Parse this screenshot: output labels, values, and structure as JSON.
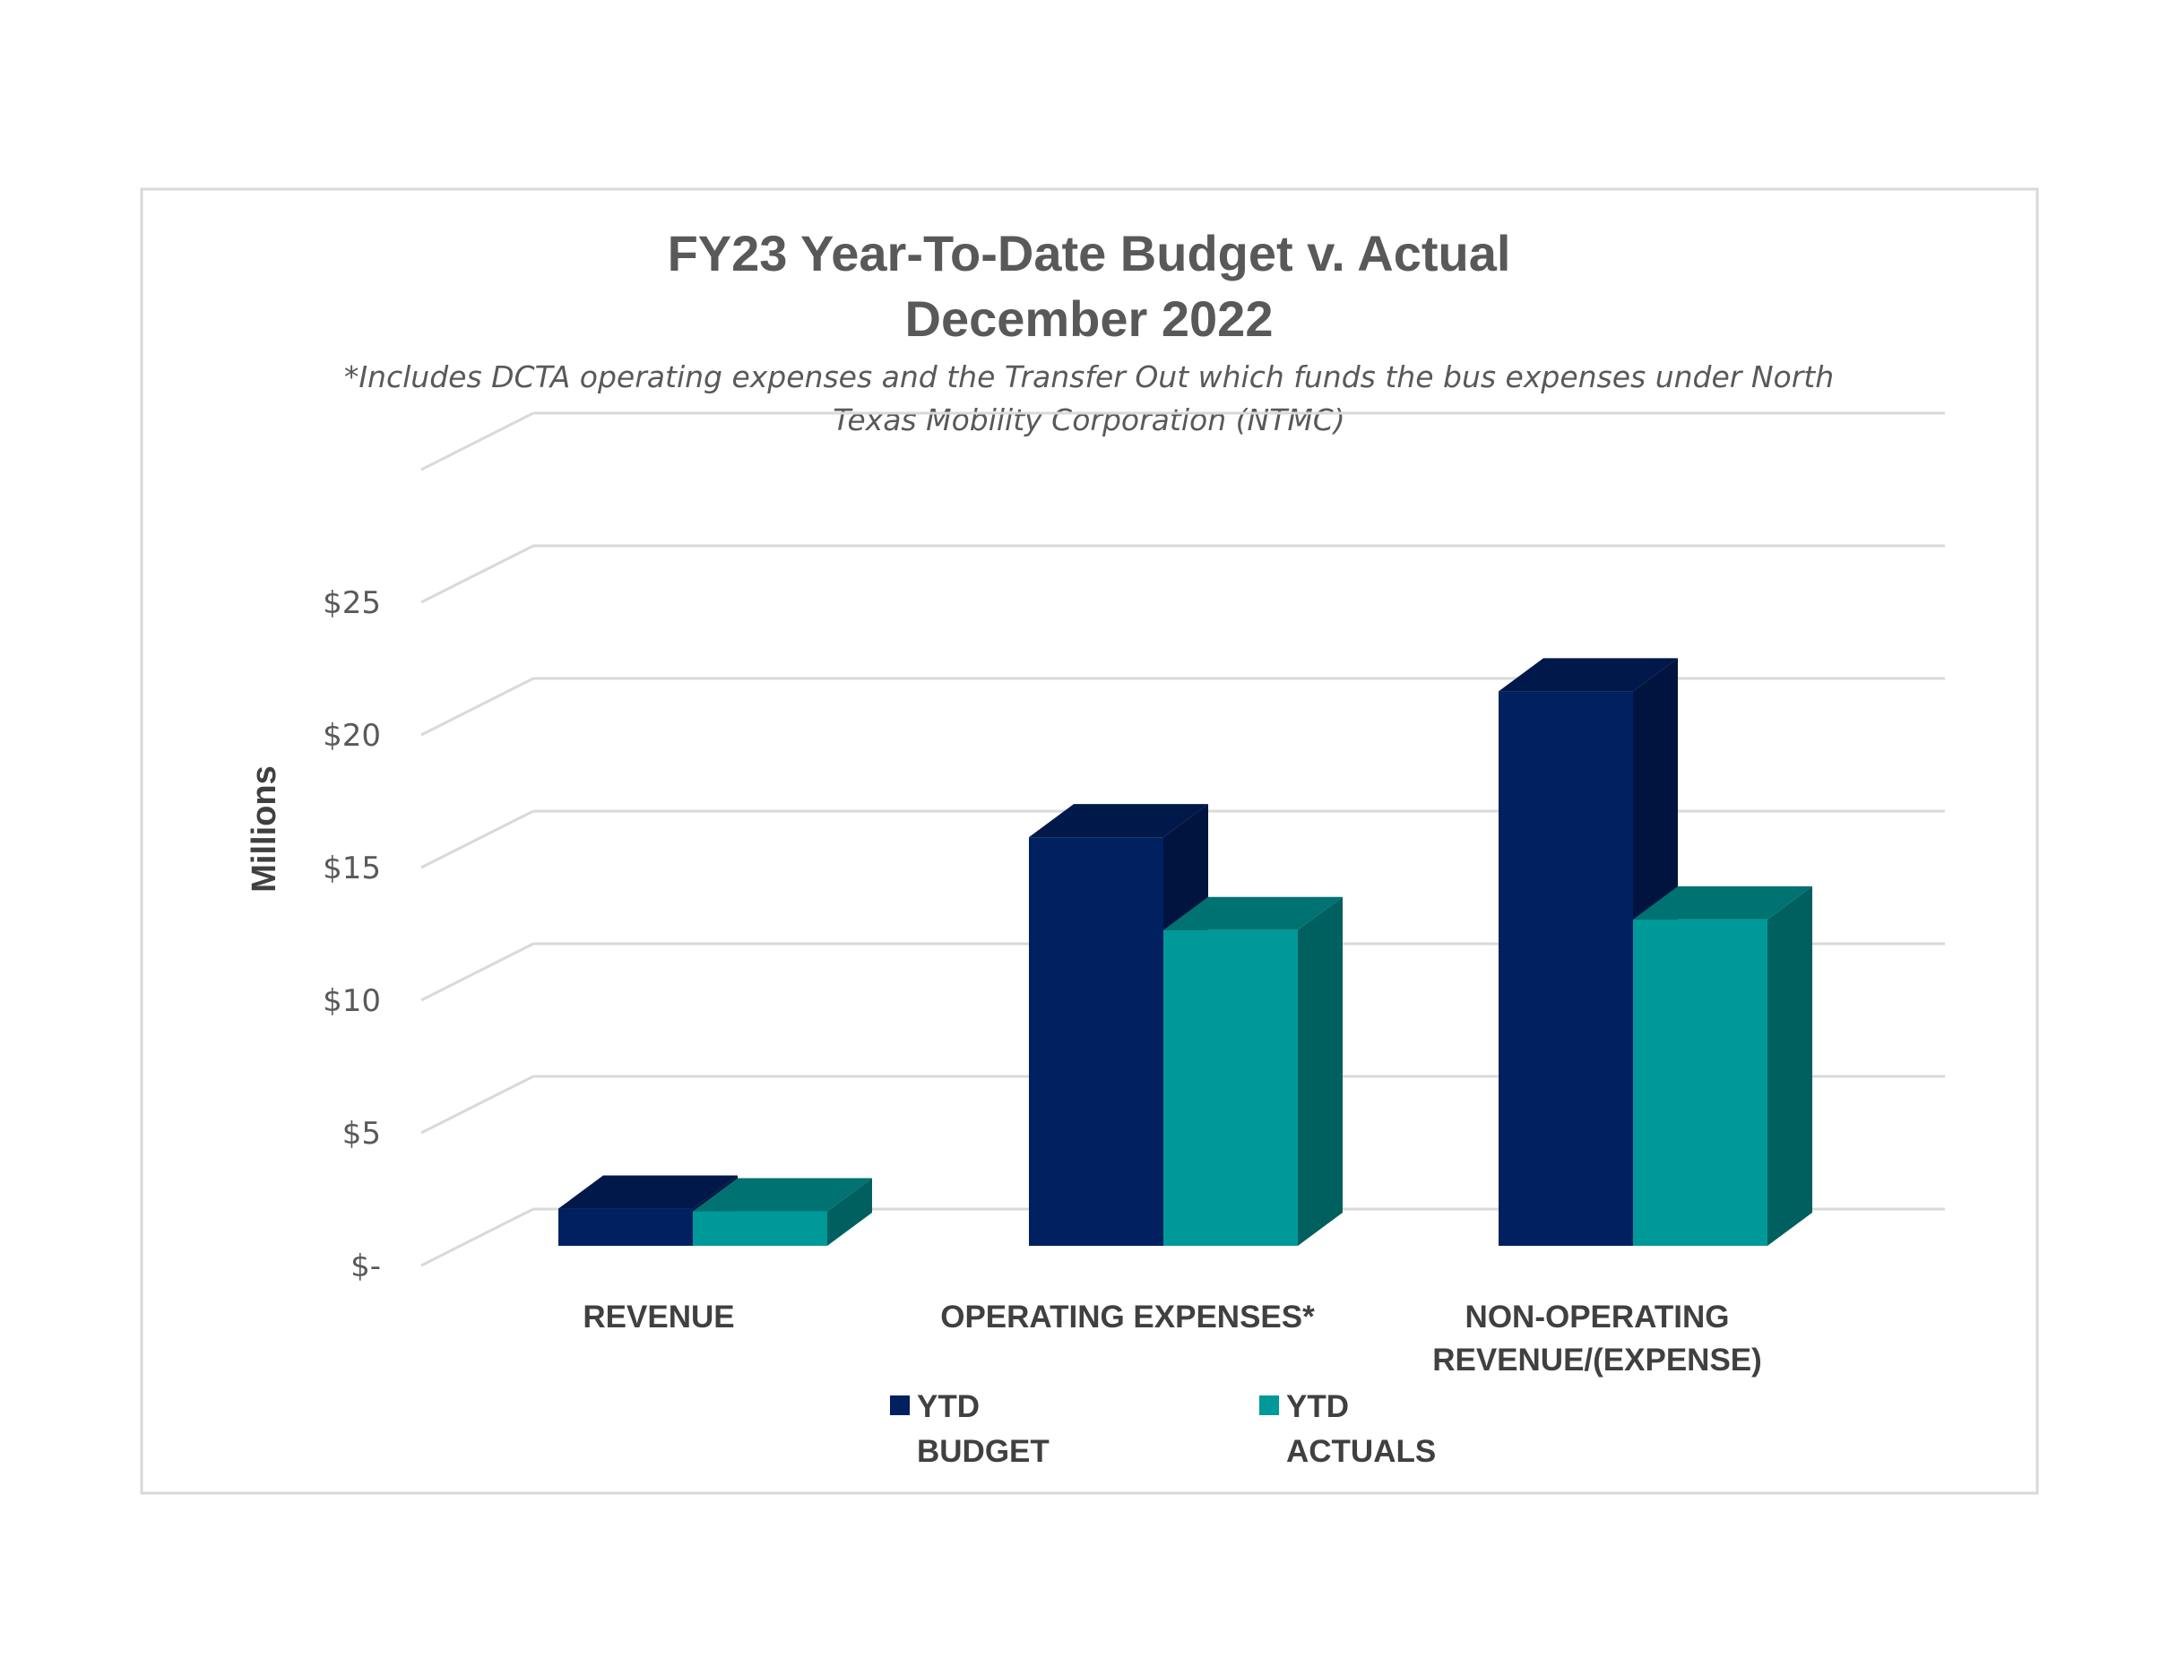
{
  "chart_data": {
    "type": "bar",
    "title_lines": [
      "FY23 Year-To-Date Budget v. Actual",
      "December 2022"
    ],
    "subtitle_lines": [
      "*Includes DCTA operating expenses and the Transfer Out which funds the bus expenses under North",
      "Texas Mobility Corporation (NTMC)"
    ],
    "ylabel": "Millions",
    "ylim": [
      0,
      25
    ],
    "yticks": [
      {
        "value": 0,
        "label": "$-"
      },
      {
        "value": 5,
        "label": "$5"
      },
      {
        "value": 10,
        "label": "$10"
      },
      {
        "value": 15,
        "label": "$15"
      },
      {
        "value": 20,
        "label": "$20"
      },
      {
        "value": 25,
        "label": "$25"
      }
    ],
    "categories": [
      {
        "name": "REVENUE",
        "lines": [
          "REVENUE"
        ]
      },
      {
        "name": "OPERATING EXPENSES*",
        "lines": [
          "OPERATING EXPENSES*"
        ]
      },
      {
        "name": "NON-OPERATING REVENUE/(EXPENSE)",
        "lines": [
          "NON-OPERATING",
          "REVENUE/(EXPENSE)"
        ]
      }
    ],
    "series": [
      {
        "name": "YTD BUDGET",
        "legend_lines": [
          "YTD",
          "BUDGET"
        ],
        "values": [
          1.4,
          15.4,
          20.9
        ],
        "color": "#002060",
        "side_color": "#00143f",
        "top_color": "#00184a"
      },
      {
        "name": "YTD ACTUALS",
        "legend_lines": [
          "YTD",
          "ACTUALS"
        ],
        "values": [
          1.3,
          11.9,
          12.3
        ],
        "color": "#009999",
        "side_color": "#006060",
        "top_color": "#007272"
      }
    ],
    "grid": true,
    "projection": "3d",
    "legend_position": "bottom",
    "colors": {
      "text": "#595959",
      "grid": "#d9d9d9",
      "frame": "#d9d9d9"
    }
  }
}
